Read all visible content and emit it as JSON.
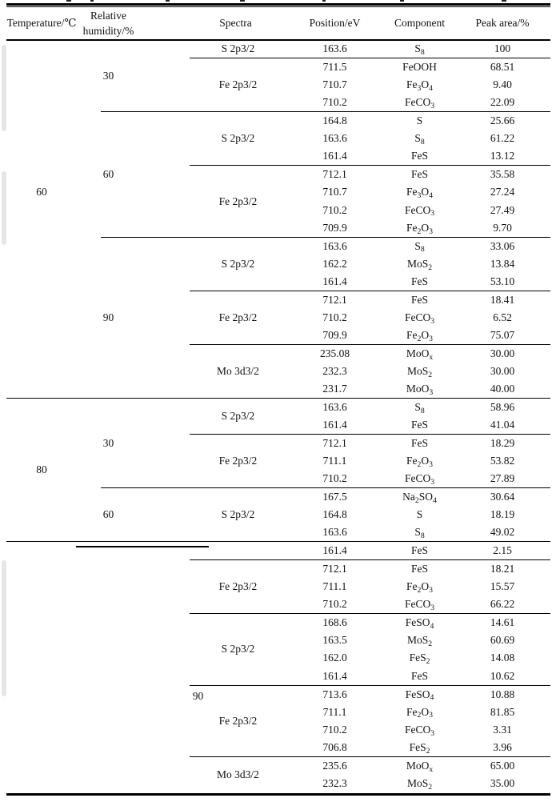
{
  "page": {
    "background": "#ffffff",
    "ink": "#000000",
    "rule_color": "#000000"
  },
  "table": {
    "headers": [
      {
        "id": "temperature",
        "label": "Temperature/℃"
      },
      {
        "id": "humidity",
        "label": "Relative humidity/%"
      },
      {
        "id": "spectra",
        "label": "Spectra"
      },
      {
        "id": "position",
        "label": "Position/eV"
      },
      {
        "id": "component",
        "label": "Component"
      },
      {
        "id": "peak_area",
        "label": "Peak area/%"
      }
    ],
    "sections": [
      {
        "temperature": "60",
        "groups": [
          {
            "humidity": "30",
            "spectra": [
              {
                "name": "S 2p3/2",
                "rows": [
                  {
                    "position": "163.6",
                    "component": "S_8",
                    "peak_area": "100"
                  }
                ]
              },
              {
                "name": "Fe 2p3/2",
                "rows": [
                  {
                    "position": "711.5",
                    "component": "FeOOH",
                    "peak_area": "68.51"
                  },
                  {
                    "position": "710.7",
                    "component": "Fe_3O_4",
                    "peak_area": "9.40"
                  },
                  {
                    "position": "710.2",
                    "component": "FeCO_3",
                    "peak_area": "22.09"
                  }
                ]
              }
            ]
          },
          {
            "humidity": "60",
            "spectra": [
              {
                "name": "S 2p3/2",
                "rows": [
                  {
                    "position": "164.8",
                    "component": "S",
                    "peak_area": "25.66"
                  },
                  {
                    "position": "163.6",
                    "component": "S_8",
                    "peak_area": "61.22"
                  },
                  {
                    "position": "161.4",
                    "component": "FeS",
                    "peak_area": "13.12"
                  }
                ]
              },
              {
                "name": "Fe 2p3/2",
                "rows": [
                  {
                    "position": "712.1",
                    "component": "FeS",
                    "peak_area": "35.58"
                  },
                  {
                    "position": "710.7",
                    "component": "Fe_3O_4",
                    "peak_area": "27.24"
                  },
                  {
                    "position": "710.2",
                    "component": "FeCO_3",
                    "peak_area": "27.49"
                  },
                  {
                    "position": "709.9",
                    "component": "Fe_2O_3",
                    "peak_area": "9.70"
                  }
                ]
              }
            ]
          },
          {
            "humidity": "90",
            "spectra": [
              {
                "name": "S 2p3/2",
                "rows": [
                  {
                    "position": "163.6",
                    "component": "S_8",
                    "peak_area": "33.06"
                  },
                  {
                    "position": "162.2",
                    "component": "MoS_2",
                    "peak_area": "13.84"
                  },
                  {
                    "position": "161.4",
                    "component": "FeS",
                    "peak_area": "53.10"
                  }
                ]
              },
              {
                "name": "Fe 2p3/2",
                "rows": [
                  {
                    "position": "712.1",
                    "component": "FeS",
                    "peak_area": "18.41"
                  },
                  {
                    "position": "710.2",
                    "component": "FeCO_3",
                    "peak_area": "6.52"
                  },
                  {
                    "position": "709.9",
                    "component": "Fe_2O_3",
                    "peak_area": "75.07"
                  }
                ]
              },
              {
                "name": "Mo 3d3/2",
                "rows": [
                  {
                    "position": "235.08",
                    "component": "MoO_x",
                    "peak_area": "30.00"
                  },
                  {
                    "position": "232.3",
                    "component": "MoS_2",
                    "peak_area": "30.00"
                  },
                  {
                    "position": "231.7",
                    "component": "MoO_3",
                    "peak_area": "40.00"
                  }
                ]
              }
            ]
          }
        ]
      },
      {
        "temperature": "80",
        "groups": [
          {
            "humidity": "30",
            "spectra": [
              {
                "name": "S 2p3/2",
                "rows": [
                  {
                    "position": "163.6",
                    "component": "S_8",
                    "peak_area": "58.96"
                  },
                  {
                    "position": "161.4",
                    "component": "FeS",
                    "peak_area": "41.04"
                  }
                ]
              },
              {
                "name": "Fe 2p3/2",
                "rows": [
                  {
                    "position": "712.1",
                    "component": "FeS",
                    "peak_area": "18.29"
                  },
                  {
                    "position": "711.1",
                    "component": "Fe_2O_3",
                    "peak_area": "53.82"
                  },
                  {
                    "position": "710.2",
                    "component": "FeCO_3",
                    "peak_area": "27.89"
                  }
                ]
              }
            ]
          },
          {
            "humidity": "60",
            "spectra": [
              {
                "name": "S 2p3/2",
                "rows": [
                  {
                    "position": "167.5",
                    "component": "Na_2SO_4",
                    "peak_area": "30.64"
                  },
                  {
                    "position": "164.8",
                    "component": "S",
                    "peak_area": "18.19"
                  },
                  {
                    "position": "163.6",
                    "component": "S_8",
                    "peak_area": "49.02"
                  }
                ]
              }
            ]
          }
        ]
      },
      {
        "temperature": "",
        "groups": [
          {
            "humidity": "90",
            "spectra": [
              {
                "name": "",
                "rows": [
                  {
                    "position": "161.4",
                    "component": "FeS",
                    "peak_area": "2.15"
                  }
                ]
              },
              {
                "name": "Fe 2p3/2",
                "rows": [
                  {
                    "position": "712.1",
                    "component": "FeS",
                    "peak_area": "18.21"
                  },
                  {
                    "position": "711.1",
                    "component": "Fe_2O_3",
                    "peak_area": "15.57"
                  },
                  {
                    "position": "710.2",
                    "component": "FeCO_3",
                    "peak_area": "66.22"
                  }
                ]
              },
              {
                "name": "S 2p3/2",
                "rows": [
                  {
                    "position": "168.6",
                    "component": "FeSO_4",
                    "peak_area": "14.61"
                  },
                  {
                    "position": "163.5",
                    "component": "MoS_2",
                    "peak_area": "60.69"
                  },
                  {
                    "position": "162.0",
                    "component": "FeS_2",
                    "peak_area": "14.08"
                  },
                  {
                    "position": "161.4",
                    "component": "FeS",
                    "peak_area": "10.62"
                  }
                ]
              },
              {
                "name": "Fe 2p3/2",
                "rows": [
                  {
                    "position": "713.6",
                    "component": "FeSO_4",
                    "peak_area": "10.88"
                  },
                  {
                    "position": "711.1",
                    "component": "Fe_2O_3",
                    "peak_area": "81.85"
                  },
                  {
                    "position": "710.2",
                    "component": "FeCO_3",
                    "peak_area": "3.31"
                  },
                  {
                    "position": "706.8",
                    "component": "FeS_2",
                    "peak_area": "3.96"
                  }
                ]
              },
              {
                "name": "Mo 3d3/2",
                "rows": [
                  {
                    "position": "235.6",
                    "component": "MoO_x",
                    "peak_area": "65.00"
                  },
                  {
                    "position": "232.3",
                    "component": "MoS_2",
                    "peak_area": "35.00"
                  }
                ]
              }
            ]
          }
        ]
      }
    ]
  }
}
